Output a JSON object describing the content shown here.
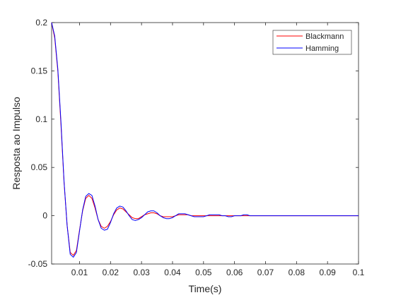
{
  "chart_data": {
    "type": "line",
    "xlabel": "Time(s)",
    "ylabel": "Resposta ao Impulso",
    "xlim": [
      0.001,
      0.1
    ],
    "ylim": [
      -0.05,
      0.2
    ],
    "x_ticks": [
      0.01,
      0.02,
      0.03,
      0.04,
      0.05,
      0.06,
      0.07,
      0.08,
      0.09,
      0.1
    ],
    "y_ticks": [
      -0.05,
      0,
      0.05,
      0.1,
      0.15,
      0.2
    ],
    "x_tick_labels": [
      "0.01",
      "0.02",
      "0.03",
      "0.04",
      "0.05",
      "0.06",
      "0.07",
      "0.08",
      "0.09",
      "0.1"
    ],
    "y_tick_labels": [
      "-0.05",
      "0",
      "0.05",
      "0.1",
      "0.15",
      "0.2"
    ],
    "grid": false,
    "legend_position": "top-right",
    "series": [
      {
        "name": "Blackmann",
        "color": "#ff0000",
        "x": [
          0.001,
          0.002,
          0.003,
          0.004,
          0.005,
          0.006,
          0.007,
          0.008,
          0.009,
          0.01,
          0.011,
          0.012,
          0.013,
          0.014,
          0.015,
          0.016,
          0.017,
          0.018,
          0.019,
          0.02,
          0.021,
          0.022,
          0.023,
          0.024,
          0.025,
          0.026,
          0.027,
          0.028,
          0.029,
          0.03,
          0.031,
          0.032,
          0.033,
          0.034,
          0.035,
          0.036,
          0.037,
          0.038,
          0.039,
          0.04,
          0.041,
          0.042,
          0.043,
          0.044,
          0.045,
          0.046,
          0.047,
          0.048,
          0.05,
          0.052,
          0.054,
          0.056,
          0.058,
          0.06,
          0.062,
          0.064,
          0.066,
          0.07,
          0.08,
          0.09,
          0.1
        ],
        "y": [
          0.2,
          0.184,
          0.15,
          0.095,
          0.035,
          -0.01,
          -0.038,
          -0.041,
          -0.036,
          -0.015,
          0.005,
          0.018,
          0.021,
          0.018,
          0.008,
          -0.004,
          -0.011,
          -0.013,
          -0.011,
          -0.006,
          0.001,
          0.006,
          0.008,
          0.007,
          0.004,
          0.001,
          -0.002,
          -0.003,
          -0.003,
          -0.001,
          0.001,
          0.002,
          0.003,
          0.003,
          0.002,
          0.0,
          -0.001,
          -0.001,
          -0.001,
          -0.001,
          0.0,
          0.001,
          0.001,
          0.001,
          0.001,
          0.0,
          0.0,
          0.0,
          0.0,
          0.0,
          0.0,
          0.0,
          0.0,
          0.0,
          0.0,
          0.0,
          0.0,
          0.0,
          0.0,
          0.0,
          0.0
        ]
      },
      {
        "name": "Hamming",
        "color": "#0000ff",
        "x": [
          0.001,
          0.002,
          0.003,
          0.004,
          0.005,
          0.006,
          0.007,
          0.008,
          0.009,
          0.01,
          0.011,
          0.012,
          0.013,
          0.014,
          0.015,
          0.016,
          0.017,
          0.018,
          0.019,
          0.02,
          0.021,
          0.022,
          0.023,
          0.024,
          0.025,
          0.026,
          0.027,
          0.028,
          0.029,
          0.03,
          0.031,
          0.032,
          0.033,
          0.034,
          0.035,
          0.036,
          0.037,
          0.038,
          0.039,
          0.04,
          0.041,
          0.042,
          0.043,
          0.044,
          0.045,
          0.046,
          0.047,
          0.048,
          0.049,
          0.05,
          0.051,
          0.052,
          0.053,
          0.054,
          0.055,
          0.056,
          0.057,
          0.058,
          0.059,
          0.06,
          0.061,
          0.062,
          0.063,
          0.064,
          0.065,
          0.066,
          0.07,
          0.08,
          0.09,
          0.1
        ],
        "y": [
          0.2,
          0.186,
          0.152,
          0.098,
          0.036,
          -0.01,
          -0.04,
          -0.043,
          -0.038,
          -0.016,
          0.006,
          0.02,
          0.023,
          0.021,
          0.01,
          -0.004,
          -0.013,
          -0.015,
          -0.014,
          -0.007,
          0.002,
          0.008,
          0.01,
          0.009,
          0.005,
          0.0,
          -0.004,
          -0.005,
          -0.004,
          -0.002,
          0.001,
          0.004,
          0.005,
          0.005,
          0.003,
          0.0,
          -0.002,
          -0.003,
          -0.003,
          -0.002,
          0.0,
          0.002,
          0.002,
          0.002,
          0.001,
          0.0,
          -0.001,
          -0.001,
          -0.001,
          -0.001,
          0.0,
          0.001,
          0.001,
          0.001,
          0.001,
          0.0,
          0.0,
          -0.001,
          -0.001,
          0.0,
          0.0,
          0.0,
          0.001,
          0.001,
          0.0,
          0.0,
          0.0,
          0.0,
          0.0,
          0.0
        ]
      }
    ]
  }
}
